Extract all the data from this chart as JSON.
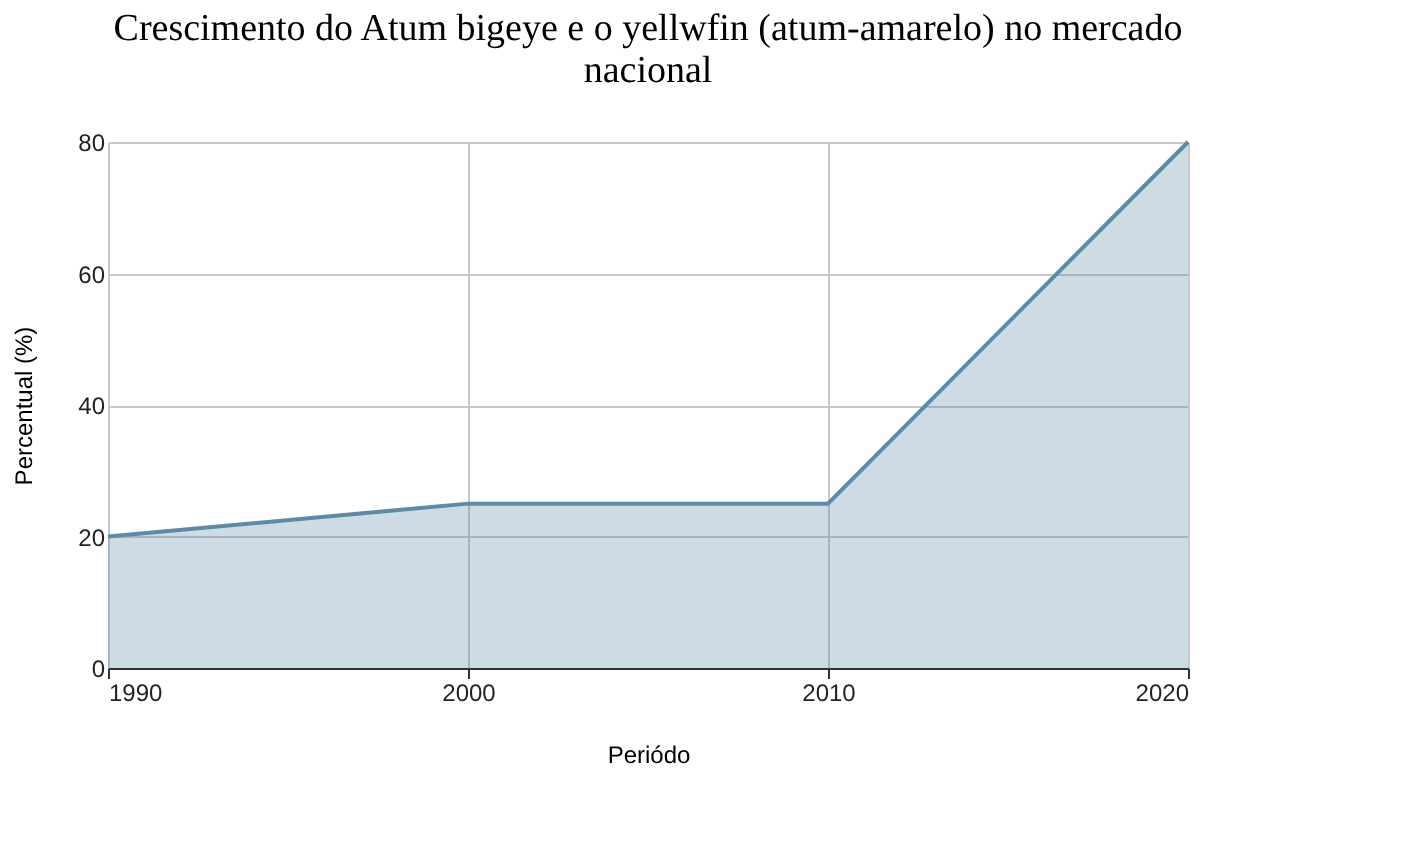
{
  "chart_data": {
    "type": "area",
    "title": "Crescimento do Atum bigeye e o yellwfin (atum-amarelo) no mercado nacional",
    "xlabel": "Periódo",
    "ylabel": "Percentual (%)",
    "x": [
      1990,
      2000,
      2010,
      2020
    ],
    "series": [
      {
        "color": "#5b8ba6",
        "values": [
          20,
          25,
          25,
          80
        ]
      }
    ],
    "xlim": [
      1990,
      2020
    ],
    "xticks": [
      1990,
      2000,
      2010,
      2020
    ],
    "ylim": [
      0,
      80
    ],
    "yticks": [
      0,
      20,
      40,
      60,
      80
    ],
    "grid": true
  }
}
